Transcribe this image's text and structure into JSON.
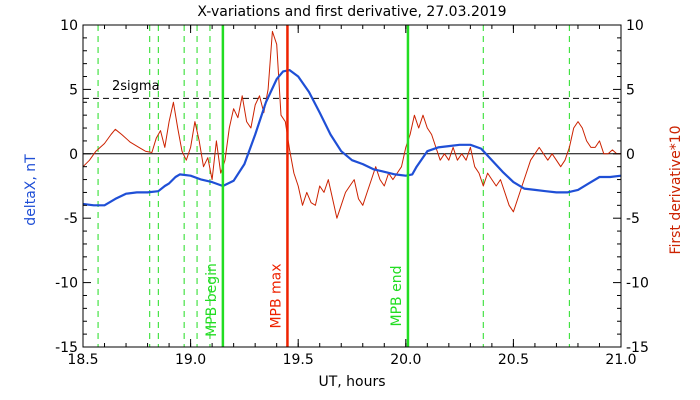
{
  "chart_data": {
    "type": "line",
    "title": "X-variations and first derivative, 27.03.2019",
    "xlabel": "UT, hours",
    "ylabel_left": "deltaX, nT",
    "ylabel_right": "First derivative*10",
    "xlim": [
      18.5,
      21.0
    ],
    "ylim": [
      -15,
      10
    ],
    "ylim_right": [
      -15,
      10
    ],
    "x_ticks": [
      "18.5",
      "19.0",
      "19.5",
      "20.0",
      "20.5",
      "21.0"
    ],
    "y_ticks": [
      "-15",
      "-10",
      "-5",
      "0",
      "5",
      "10"
    ],
    "colors": {
      "deltaX": "#1f4fd6",
      "derivative": "#cc2200",
      "mpb_bounds": "#22dd22",
      "mpb_max": "#ee2200",
      "axes": "#000000"
    },
    "threshold": {
      "label": "2sigma",
      "y": 4.3
    },
    "zero_line": 0,
    "markers": [
      {
        "label": "MPB begin",
        "x": 19.15,
        "color": "#22dd22"
      },
      {
        "label": "MPB max",
        "x": 19.45,
        "color": "#ee2200"
      },
      {
        "label": "MPB end",
        "x": 20.01,
        "color": "#22dd22"
      }
    ],
    "dashed_verticals": [
      18.57,
      18.81,
      18.85,
      18.97,
      19.03,
      19.09,
      20.36,
      20.76
    ],
    "series": [
      {
        "key": "deltaX",
        "x": [
          18.5,
          18.55,
          18.6,
          18.65,
          18.7,
          18.75,
          18.8,
          18.85,
          18.88,
          18.9,
          18.93,
          18.95,
          19.0,
          19.05,
          19.1,
          19.15,
          19.2,
          19.25,
          19.3,
          19.35,
          19.4,
          19.43,
          19.46,
          19.5,
          19.55,
          19.6,
          19.65,
          19.7,
          19.75,
          19.8,
          19.85,
          19.9,
          19.95,
          20.0,
          20.03,
          20.05,
          20.1,
          20.15,
          20.2,
          20.25,
          20.3,
          20.35,
          20.4,
          20.45,
          20.5,
          20.55,
          20.6,
          20.65,
          20.7,
          20.75,
          20.8,
          20.85,
          20.9,
          20.95,
          21.0
        ],
        "y": [
          -3.9,
          -4.0,
          -4.0,
          -3.5,
          -3.1,
          -3.0,
          -3.0,
          -2.9,
          -2.5,
          -2.3,
          -1.8,
          -1.6,
          -1.7,
          -2.0,
          -2.2,
          -2.5,
          -2.1,
          -0.8,
          1.5,
          4.0,
          5.8,
          6.4,
          6.5,
          6.0,
          4.8,
          3.2,
          1.5,
          0.2,
          -0.5,
          -0.8,
          -1.2,
          -1.4,
          -1.6,
          -1.7,
          -1.6,
          -1.0,
          0.2,
          0.5,
          0.6,
          0.7,
          0.7,
          0.4,
          -0.5,
          -1.4,
          -2.2,
          -2.7,
          -2.8,
          -2.9,
          -3.0,
          -3.0,
          -2.8,
          -2.3,
          -1.8,
          -1.8,
          -1.7
        ]
      },
      {
        "key": "derivative",
        "x": [
          18.5,
          18.53,
          18.56,
          18.6,
          18.63,
          18.65,
          18.68,
          18.72,
          18.76,
          18.79,
          18.82,
          18.84,
          18.86,
          18.88,
          18.9,
          18.92,
          18.94,
          18.96,
          18.98,
          19.0,
          19.02,
          19.04,
          19.06,
          19.08,
          19.1,
          19.12,
          19.14,
          19.16,
          19.18,
          19.2,
          19.22,
          19.24,
          19.26,
          19.28,
          19.3,
          19.32,
          19.34,
          19.36,
          19.38,
          19.4,
          19.42,
          19.44,
          19.46,
          19.48,
          19.5,
          19.52,
          19.54,
          19.56,
          19.58,
          19.6,
          19.62,
          19.64,
          19.66,
          19.68,
          19.7,
          19.72,
          19.74,
          19.76,
          19.78,
          19.8,
          19.82,
          19.84,
          19.86,
          19.88,
          19.9,
          19.92,
          19.94,
          19.96,
          19.98,
          20.0,
          20.02,
          20.04,
          20.06,
          20.08,
          20.1,
          20.12,
          20.14,
          20.16,
          20.18,
          20.2,
          20.22,
          20.24,
          20.26,
          20.28,
          20.3,
          20.32,
          20.34,
          20.36,
          20.38,
          20.4,
          20.42,
          20.44,
          20.46,
          20.48,
          20.5,
          20.52,
          20.54,
          20.56,
          20.58,
          20.6,
          20.62,
          20.64,
          20.66,
          20.68,
          20.7,
          20.72,
          20.74,
          20.76,
          20.78,
          20.8,
          20.82,
          20.84,
          20.86,
          20.88,
          20.9,
          20.92,
          20.94,
          20.96,
          20.98,
          21.0
        ],
        "y": [
          -1.0,
          -0.5,
          0.2,
          0.8,
          1.5,
          1.9,
          1.5,
          0.9,
          0.5,
          0.2,
          0.1,
          1.2,
          1.8,
          0.5,
          2.5,
          4.0,
          2.0,
          0.2,
          -0.5,
          0.5,
          2.5,
          1.0,
          -1.0,
          -0.3,
          -2.0,
          1.0,
          -1.5,
          -0.5,
          2.0,
          3.5,
          2.8,
          4.5,
          2.5,
          2.0,
          3.8,
          4.5,
          3.2,
          5.0,
          9.5,
          8.5,
          3.0,
          2.5,
          0.3,
          -1.5,
          -2.5,
          -4.0,
          -3.0,
          -3.8,
          -4.0,
          -2.5,
          -3.0,
          -2.0,
          -3.5,
          -5.0,
          -4.0,
          -3.0,
          -2.5,
          -2.0,
          -3.5,
          -4.0,
          -3.0,
          -2.0,
          -1.0,
          -2.0,
          -2.5,
          -1.5,
          -2.0,
          -1.5,
          -1.0,
          0.5,
          1.5,
          3.0,
          2.0,
          3.0,
          2.0,
          1.5,
          0.5,
          -0.5,
          0.0,
          -0.5,
          0.5,
          -0.5,
          0.0,
          -0.5,
          0.5,
          -1.0,
          -1.5,
          -2.5,
          -1.5,
          -2.0,
          -2.5,
          -2.0,
          -3.0,
          -4.0,
          -4.5,
          -3.5,
          -2.5,
          -1.5,
          -0.5,
          0.0,
          0.5,
          0.0,
          -0.5,
          0.0,
          -0.5,
          -1.0,
          -0.5,
          0.5,
          2.0,
          2.5,
          2.0,
          1.0,
          0.5,
          0.5,
          1.0,
          0.0,
          0.0,
          0.3,
          0.0,
          0.0
        ]
      }
    ]
  }
}
